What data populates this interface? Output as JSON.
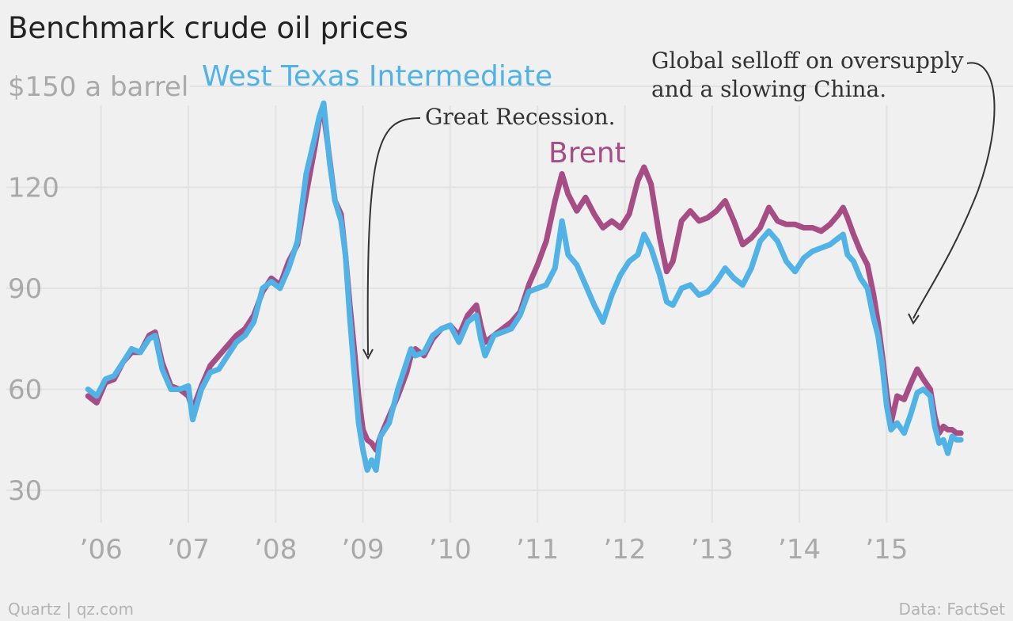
{
  "chart_data": {
    "type": "line",
    "title": "Benchmark crude oil prices",
    "y_unit_label": "$150 a barrel",
    "yticks": [
      30,
      60,
      90,
      120
    ],
    "ylim": [
      20,
      152
    ],
    "xlim": [
      2005.75,
      2016.0
    ],
    "xticks": [
      2006,
      2007,
      2008,
      2009,
      2010,
      2011,
      2012,
      2013,
      2014,
      2015
    ],
    "xtick_labels": [
      "’06",
      "’07",
      "’08",
      "’09",
      "’10",
      "’11",
      "’12",
      "’13",
      "’14",
      "’15"
    ],
    "grid": true,
    "series": [
      {
        "name": "Brent",
        "color": "#a64d86",
        "x": [
          2005.85,
          2005.95,
          2006.05,
          2006.15,
          2006.25,
          2006.35,
          2006.45,
          2006.55,
          2006.62,
          2006.7,
          2006.8,
          2006.9,
          2007.0,
          2007.05,
          2007.15,
          2007.25,
          2007.35,
          2007.45,
          2007.55,
          2007.65,
          2007.75,
          2007.85,
          2007.95,
          2008.05,
          2008.15,
          2008.25,
          2008.35,
          2008.45,
          2008.5,
          2008.55,
          2008.62,
          2008.68,
          2008.75,
          2008.8,
          2008.85,
          2008.9,
          2008.95,
          2009.0,
          2009.05,
          2009.1,
          2009.15,
          2009.2,
          2009.3,
          2009.4,
          2009.5,
          2009.55,
          2009.6,
          2009.7,
          2009.8,
          2009.9,
          2010.0,
          2010.1,
          2010.2,
          2010.3,
          2010.35,
          2010.4,
          2010.5,
          2010.6,
          2010.7,
          2010.8,
          2010.9,
          2011.0,
          2011.1,
          2011.2,
          2011.28,
          2011.35,
          2011.45,
          2011.55,
          2011.65,
          2011.75,
          2011.85,
          2011.95,
          2012.05,
          2012.15,
          2012.22,
          2012.3,
          2012.4,
          2012.48,
          2012.55,
          2012.65,
          2012.75,
          2012.85,
          2012.95,
          2013.05,
          2013.15,
          2013.25,
          2013.35,
          2013.45,
          2013.55,
          2013.65,
          2013.75,
          2013.85,
          2013.95,
          2014.05,
          2014.15,
          2014.25,
          2014.35,
          2014.45,
          2014.5,
          2014.55,
          2014.62,
          2014.7,
          2014.78,
          2014.85,
          2014.9,
          2014.95,
          2015.0,
          2015.05,
          2015.12,
          2015.2,
          2015.28,
          2015.35,
          2015.42,
          2015.5,
          2015.55,
          2015.6,
          2015.65,
          2015.7,
          2015.75,
          2015.8,
          2015.85
        ],
        "values": [
          58,
          56,
          62,
          63,
          68,
          71,
          71,
          76,
          77,
          68,
          61,
          60,
          58,
          54,
          61,
          67,
          70,
          73,
          76,
          78,
          82,
          89,
          93,
          91,
          98,
          103,
          118,
          132,
          140,
          142,
          128,
          116,
          112,
          100,
          85,
          72,
          58,
          48,
          45,
          44,
          42,
          46,
          52,
          58,
          65,
          70,
          72,
          70,
          75,
          78,
          79,
          76,
          82,
          85,
          79,
          74,
          76,
          78,
          80,
          83,
          91,
          97,
          104,
          116,
          124,
          118,
          113,
          117,
          112,
          108,
          110,
          108,
          112,
          122,
          126,
          121,
          105,
          95,
          98,
          110,
          113,
          110,
          111,
          113,
          116,
          110,
          103,
          105,
          108,
          114,
          110,
          109,
          109,
          108,
          108,
          107,
          109,
          112,
          114,
          111,
          106,
          101,
          97,
          88,
          80,
          70,
          59,
          50,
          58,
          57,
          62,
          66,
          63,
          60,
          52,
          47,
          49,
          48,
          48,
          47,
          47
        ]
      },
      {
        "name": "West Texas Intermediate",
        "color": "#51b2e5",
        "x": [
          2005.85,
          2005.95,
          2006.05,
          2006.15,
          2006.25,
          2006.35,
          2006.45,
          2006.55,
          2006.62,
          2006.7,
          2006.8,
          2006.9,
          2007.0,
          2007.05,
          2007.15,
          2007.25,
          2007.35,
          2007.45,
          2007.55,
          2007.65,
          2007.75,
          2007.85,
          2007.95,
          2008.05,
          2008.15,
          2008.25,
          2008.35,
          2008.45,
          2008.5,
          2008.55,
          2008.62,
          2008.68,
          2008.75,
          2008.8,
          2008.85,
          2008.9,
          2008.95,
          2009.0,
          2009.05,
          2009.1,
          2009.15,
          2009.2,
          2009.3,
          2009.4,
          2009.5,
          2009.55,
          2009.6,
          2009.7,
          2009.8,
          2009.9,
          2010.0,
          2010.1,
          2010.2,
          2010.3,
          2010.35,
          2010.4,
          2010.5,
          2010.6,
          2010.7,
          2010.8,
          2010.9,
          2011.0,
          2011.1,
          2011.2,
          2011.28,
          2011.35,
          2011.45,
          2011.55,
          2011.65,
          2011.75,
          2011.85,
          2011.95,
          2012.05,
          2012.15,
          2012.22,
          2012.3,
          2012.4,
          2012.48,
          2012.55,
          2012.65,
          2012.75,
          2012.85,
          2012.95,
          2013.05,
          2013.15,
          2013.25,
          2013.35,
          2013.45,
          2013.55,
          2013.65,
          2013.75,
          2013.85,
          2013.95,
          2014.05,
          2014.15,
          2014.25,
          2014.35,
          2014.45,
          2014.5,
          2014.55,
          2014.62,
          2014.7,
          2014.78,
          2014.85,
          2014.9,
          2014.95,
          2015.0,
          2015.05,
          2015.12,
          2015.2,
          2015.28,
          2015.35,
          2015.42,
          2015.5,
          2015.55,
          2015.6,
          2015.65,
          2015.7,
          2015.75,
          2015.8,
          2015.85
        ],
        "values": [
          60,
          58,
          63,
          64,
          68,
          72,
          71,
          75,
          76,
          66,
          60,
          60,
          61,
          51,
          60,
          65,
          66,
          70,
          74,
          76,
          80,
          90,
          92,
          90,
          96,
          104,
          124,
          135,
          141,
          145,
          127,
          116,
          110,
          100,
          81,
          65,
          50,
          42,
          36,
          39,
          36,
          46,
          50,
          60,
          68,
          72,
          70,
          71,
          76,
          78,
          79,
          74,
          80,
          82,
          75,
          70,
          76,
          77,
          78,
          82,
          89,
          90,
          91,
          96,
          110,
          100,
          97,
          91,
          85,
          80,
          88,
          94,
          98,
          100,
          106,
          102,
          94,
          86,
          85,
          90,
          91,
          88,
          89,
          92,
          96,
          93,
          91,
          96,
          104,
          107,
          104,
          98,
          95,
          99,
          101,
          102,
          103,
          105,
          106,
          100,
          98,
          93,
          90,
          81,
          76,
          67,
          55,
          48,
          50,
          47,
          53,
          59,
          60,
          58,
          49,
          44,
          45,
          41,
          46,
          45,
          45
        ]
      }
    ],
    "annotations": [
      {
        "id": "great-recession",
        "lines": [
          "Great Recession."
        ]
      },
      {
        "id": "global-selloff",
        "lines": [
          "Global selloff on oversupply",
          "and a slowing China."
        ]
      }
    ]
  },
  "footer": {
    "source_left": "Quartz | qz.com",
    "source_right": "Data: FactSet"
  }
}
